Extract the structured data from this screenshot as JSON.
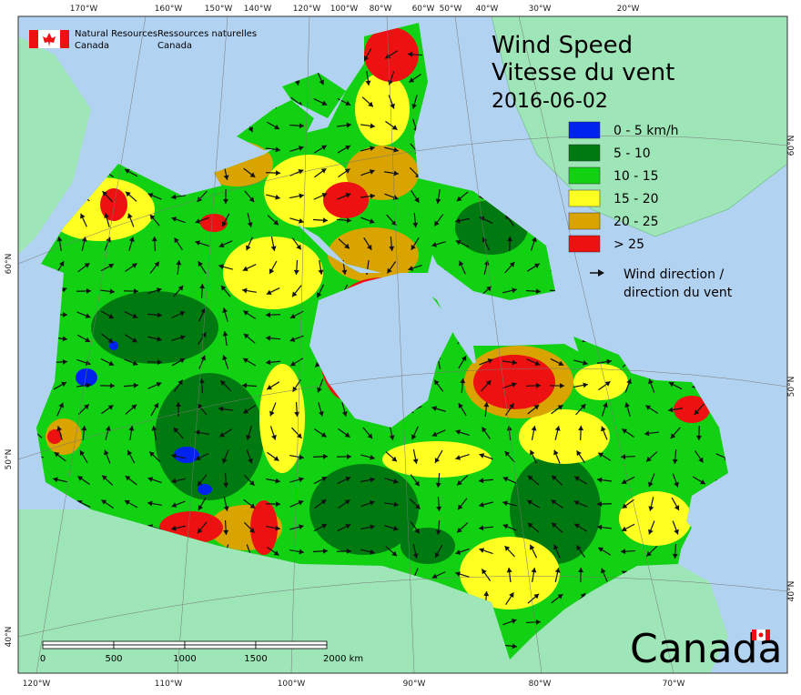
{
  "agency": {
    "english": [
      "Natural Resources",
      "Canada"
    ],
    "french": [
      "Ressources naturelles",
      "Canada"
    ]
  },
  "title": [
    "Wind Speed",
    "Vitesse du vent"
  ],
  "date": "2016-06-02",
  "legend": {
    "items": [
      {
        "label": "0 - 5 km/h",
        "color": "#0022ee"
      },
      {
        "label": "5 - 10",
        "color": "#007a10"
      },
      {
        "label": "10 - 15",
        "color": "#12d012"
      },
      {
        "label": "15 - 20",
        "color": "#ffff22"
      },
      {
        "label": "20 - 25",
        "color": "#d9a400"
      },
      {
        "label": "> 25",
        "color": "#ee1111"
      }
    ],
    "arrow": [
      "Wind direction /",
      "direction du vent"
    ]
  },
  "graticule": {
    "top": [
      "170°W",
      "160°W",
      "150°W",
      "140°W",
      "120°W",
      "100°W",
      "80°W",
      "60°W",
      "50°W",
      "40°W",
      "30°W",
      "20°W"
    ],
    "bottom": [
      "120°W",
      "110°W",
      "100°W",
      "90°W",
      "80°W",
      "70°W"
    ],
    "left": [
      "60°N",
      "50°N",
      "40°N"
    ],
    "right": [
      "60°N",
      "50°N",
      "40°N"
    ]
  },
  "scale": [
    "0",
    "500",
    "1000",
    "1500",
    "2000 km"
  ],
  "wordmark": "Canada"
}
